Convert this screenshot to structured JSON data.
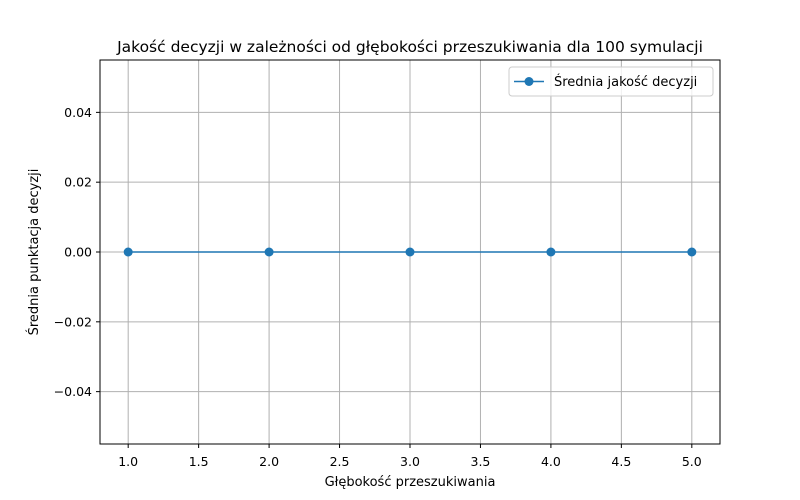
{
  "chart_data": {
    "type": "line",
    "title": "Jakość decyzji w zależności od głębokości przeszukiwania dla 100 symulacji",
    "xlabel": "Głębokość przeszukiwania",
    "ylabel": "Średnia punktacja decyzji",
    "xlim": [
      0.8,
      5.2
    ],
    "ylim": [
      -0.055,
      0.055
    ],
    "xticks": [
      1.0,
      1.5,
      2.0,
      2.5,
      3.0,
      3.5,
      4.0,
      4.5,
      5.0
    ],
    "xtick_labels": [
      "1.0",
      "1.5",
      "2.0",
      "2.5",
      "3.0",
      "3.5",
      "4.0",
      "4.5",
      "5.0"
    ],
    "yticks": [
      -0.04,
      -0.02,
      0.0,
      0.02,
      0.04
    ],
    "ytick_labels": [
      "−0.04",
      "−0.02",
      "0.00",
      "0.02",
      "0.04"
    ],
    "grid": true,
    "legend_position": "top-right",
    "series": [
      {
        "name": "Średnia jakość decyzji",
        "color": "#1f77b4",
        "marker": "circle",
        "x": [
          1,
          2,
          3,
          4,
          5
        ],
        "y": [
          0.0,
          0.0,
          0.0,
          0.0,
          0.0
        ]
      }
    ]
  }
}
